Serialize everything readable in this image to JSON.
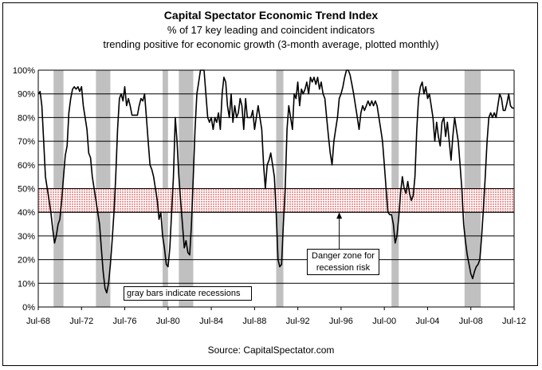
{
  "chart_data": {
    "type": "line",
    "title": "Capital Spectator Economic Trend Index",
    "subtitle_lines": [
      "% of 17 key leading and coincident indicators",
      "trending positive for economic growth (3-month average, plotted monthly)"
    ],
    "source": "Source: CapitalSpectator.com",
    "x_tick_labels": [
      "Jul-68",
      "Jul-72",
      "Jul-76",
      "Jul-80",
      "Jul-84",
      "Jul-88",
      "Jul-92",
      "Jul-96",
      "Jul-00",
      "Jul-04",
      "Jul-08",
      "Jul-12"
    ],
    "x_range": [
      "1968-07",
      "2012-07"
    ],
    "y_tick_labels": [
      "0%",
      "10%",
      "20%",
      "30%",
      "40%",
      "50%",
      "60%",
      "70%",
      "80%",
      "90%",
      "100%"
    ],
    "ylim": [
      0,
      100
    ],
    "grid": "horizontal",
    "danger_zone": {
      "low": 40,
      "high": 50
    },
    "recessions": [
      [
        "1969-12",
        "1970-11"
      ],
      [
        "1973-11",
        "1975-03"
      ],
      [
        "1980-01",
        "1980-07"
      ],
      [
        "1981-07",
        "1982-11"
      ],
      [
        "1990-07",
        "1991-03"
      ],
      [
        "2001-03",
        "2001-11"
      ],
      [
        "2007-12",
        "2009-06"
      ]
    ],
    "series": [
      {
        "points": [
          [
            "1968-07",
            90
          ],
          [
            "1968-09",
            91
          ],
          [
            "1968-11",
            85
          ],
          [
            "1969-01",
            70
          ],
          [
            "1969-03",
            55
          ],
          [
            "1969-05",
            50
          ],
          [
            "1969-07",
            45
          ],
          [
            "1969-09",
            40
          ],
          [
            "1969-11",
            33
          ],
          [
            "1970-01",
            27
          ],
          [
            "1970-03",
            30
          ],
          [
            "1970-05",
            35
          ],
          [
            "1970-07",
            37
          ],
          [
            "1970-09",
            45
          ],
          [
            "1970-11",
            55
          ],
          [
            "1971-01",
            64
          ],
          [
            "1971-03",
            68
          ],
          [
            "1971-05",
            82
          ],
          [
            "1971-07",
            88
          ],
          [
            "1971-09",
            92
          ],
          [
            "1971-11",
            93
          ],
          [
            "1972-01",
            92
          ],
          [
            "1972-03",
            93
          ],
          [
            "1972-05",
            91
          ],
          [
            "1972-07",
            93
          ],
          [
            "1972-09",
            85
          ],
          [
            "1972-11",
            80
          ],
          [
            "1973-01",
            75
          ],
          [
            "1973-03",
            65
          ],
          [
            "1973-05",
            63
          ],
          [
            "1973-07",
            55
          ],
          [
            "1973-09",
            50
          ],
          [
            "1973-11",
            45
          ],
          [
            "1974-01",
            40
          ],
          [
            "1974-03",
            35
          ],
          [
            "1974-05",
            25
          ],
          [
            "1974-07",
            15
          ],
          [
            "1974-09",
            8
          ],
          [
            "1974-11",
            6
          ],
          [
            "1975-01",
            10
          ],
          [
            "1975-03",
            18
          ],
          [
            "1975-05",
            28
          ],
          [
            "1975-07",
            40
          ],
          [
            "1975-09",
            55
          ],
          [
            "1975-11",
            75
          ],
          [
            "1976-01",
            88
          ],
          [
            "1976-03",
            90
          ],
          [
            "1976-05",
            87
          ],
          [
            "1976-07",
            93
          ],
          [
            "1976-09",
            85
          ],
          [
            "1976-11",
            88
          ],
          [
            "1977-01",
            85
          ],
          [
            "1977-03",
            81
          ],
          [
            "1977-05",
            81
          ],
          [
            "1977-07",
            81
          ],
          [
            "1977-09",
            81
          ],
          [
            "1977-11",
            85
          ],
          [
            "1978-01",
            88
          ],
          [
            "1978-03",
            87
          ],
          [
            "1978-05",
            90
          ],
          [
            "1978-07",
            80
          ],
          [
            "1978-09",
            70
          ],
          [
            "1978-11",
            60
          ],
          [
            "1979-01",
            58
          ],
          [
            "1979-03",
            55
          ],
          [
            "1979-05",
            50
          ],
          [
            "1979-07",
            45
          ],
          [
            "1979-09",
            37
          ],
          [
            "1979-11",
            40
          ],
          [
            "1980-01",
            30
          ],
          [
            "1980-03",
            25
          ],
          [
            "1980-05",
            18
          ],
          [
            "1980-07",
            17
          ],
          [
            "1980-09",
            25
          ],
          [
            "1980-11",
            40
          ],
          [
            "1981-01",
            55
          ],
          [
            "1981-03",
            80
          ],
          [
            "1981-05",
            70
          ],
          [
            "1981-07",
            55
          ],
          [
            "1981-09",
            45
          ],
          [
            "1981-11",
            35
          ],
          [
            "1982-01",
            25
          ],
          [
            "1982-03",
            28
          ],
          [
            "1982-05",
            23
          ],
          [
            "1982-07",
            22
          ],
          [
            "1982-09",
            35
          ],
          [
            "1982-11",
            55
          ],
          [
            "1983-01",
            75
          ],
          [
            "1983-03",
            90
          ],
          [
            "1983-05",
            95
          ],
          [
            "1983-07",
            100
          ],
          [
            "1983-09",
            100
          ],
          [
            "1983-11",
            100
          ],
          [
            "1984-01",
            90
          ],
          [
            "1984-03",
            80
          ],
          [
            "1984-05",
            78
          ],
          [
            "1984-07",
            80
          ],
          [
            "1984-09",
            75
          ],
          [
            "1984-11",
            80
          ],
          [
            "1985-01",
            78
          ],
          [
            "1985-03",
            82
          ],
          [
            "1985-05",
            75
          ],
          [
            "1985-07",
            90
          ],
          [
            "1985-09",
            97
          ],
          [
            "1985-11",
            95
          ],
          [
            "1986-01",
            85
          ],
          [
            "1986-03",
            80
          ],
          [
            "1986-05",
            90
          ],
          [
            "1986-07",
            78
          ],
          [
            "1986-09",
            85
          ],
          [
            "1986-11",
            80
          ],
          [
            "1987-01",
            82
          ],
          [
            "1987-03",
            88
          ],
          [
            "1987-05",
            85
          ],
          [
            "1987-07",
            75
          ],
          [
            "1987-09",
            88
          ],
          [
            "1987-11",
            80
          ],
          [
            "1988-01",
            80
          ],
          [
            "1988-03",
            80
          ],
          [
            "1988-05",
            83
          ],
          [
            "1988-07",
            75
          ],
          [
            "1988-09",
            80
          ],
          [
            "1988-11",
            85
          ],
          [
            "1989-01",
            80
          ],
          [
            "1989-03",
            75
          ],
          [
            "1989-05",
            60
          ],
          [
            "1989-07",
            50
          ],
          [
            "1989-09",
            60
          ],
          [
            "1989-11",
            62
          ],
          [
            "1990-01",
            65
          ],
          [
            "1990-03",
            60
          ],
          [
            "1990-05",
            55
          ],
          [
            "1990-07",
            40
          ],
          [
            "1990-09",
            20
          ],
          [
            "1990-11",
            17
          ],
          [
            "1991-01",
            18
          ],
          [
            "1991-03",
            35
          ],
          [
            "1991-05",
            50
          ],
          [
            "1991-07",
            75
          ],
          [
            "1991-09",
            85
          ],
          [
            "1991-11",
            80
          ],
          [
            "1992-01",
            75
          ],
          [
            "1992-03",
            90
          ],
          [
            "1992-05",
            88
          ],
          [
            "1992-07",
            95
          ],
          [
            "1992-09",
            85
          ],
          [
            "1992-11",
            92
          ],
          [
            "1993-01",
            90
          ],
          [
            "1993-03",
            92
          ],
          [
            "1993-05",
            95
          ],
          [
            "1993-07",
            90
          ],
          [
            "1993-09",
            97
          ],
          [
            "1993-11",
            95
          ],
          [
            "1994-01",
            97
          ],
          [
            "1994-03",
            94
          ],
          [
            "1994-05",
            97
          ],
          [
            "1994-07",
            92
          ],
          [
            "1994-09",
            95
          ],
          [
            "1994-11",
            90
          ],
          [
            "1995-01",
            88
          ],
          [
            "1995-03",
            80
          ],
          [
            "1995-05",
            72
          ],
          [
            "1995-07",
            65
          ],
          [
            "1995-09",
            60
          ],
          [
            "1995-11",
            70
          ],
          [
            "1996-01",
            75
          ],
          [
            "1996-03",
            80
          ],
          [
            "1996-05",
            88
          ],
          [
            "1996-07",
            90
          ],
          [
            "1996-09",
            93
          ],
          [
            "1996-11",
            97
          ],
          [
            "1997-01",
            100
          ],
          [
            "1997-03",
            100
          ],
          [
            "1997-05",
            98
          ],
          [
            "1997-07",
            94
          ],
          [
            "1997-09",
            90
          ],
          [
            "1997-11",
            85
          ],
          [
            "1998-01",
            80
          ],
          [
            "1998-03",
            75
          ],
          [
            "1998-05",
            82
          ],
          [
            "1998-07",
            85
          ],
          [
            "1998-09",
            83
          ],
          [
            "1998-11",
            85
          ],
          [
            "1999-01",
            87
          ],
          [
            "1999-03",
            85
          ],
          [
            "1999-05",
            87
          ],
          [
            "1999-07",
            85
          ],
          [
            "1999-09",
            87
          ],
          [
            "1999-11",
            85
          ],
          [
            "2000-01",
            80
          ],
          [
            "2000-03",
            75
          ],
          [
            "2000-05",
            70
          ],
          [
            "2000-07",
            60
          ],
          [
            "2000-09",
            50
          ],
          [
            "2000-11",
            40
          ],
          [
            "2001-01",
            39
          ],
          [
            "2001-03",
            39
          ],
          [
            "2001-05",
            35
          ],
          [
            "2001-07",
            27
          ],
          [
            "2001-09",
            30
          ],
          [
            "2001-11",
            38
          ],
          [
            "2002-01",
            48
          ],
          [
            "2002-03",
            55
          ],
          [
            "2002-05",
            50
          ],
          [
            "2002-07",
            48
          ],
          [
            "2002-09",
            53
          ],
          [
            "2002-11",
            48
          ],
          [
            "2003-01",
            45
          ],
          [
            "2003-03",
            47
          ],
          [
            "2003-05",
            55
          ],
          [
            "2003-07",
            75
          ],
          [
            "2003-09",
            88
          ],
          [
            "2003-11",
            93
          ],
          [
            "2004-01",
            95
          ],
          [
            "2004-03",
            90
          ],
          [
            "2004-05",
            93
          ],
          [
            "2004-07",
            88
          ],
          [
            "2004-09",
            90
          ],
          [
            "2004-11",
            85
          ],
          [
            "2005-01",
            80
          ],
          [
            "2005-03",
            70
          ],
          [
            "2005-05",
            78
          ],
          [
            "2005-07",
            72
          ],
          [
            "2005-09",
            68
          ],
          [
            "2005-11",
            78
          ],
          [
            "2006-01",
            80
          ],
          [
            "2006-03",
            72
          ],
          [
            "2006-05",
            78
          ],
          [
            "2006-07",
            70
          ],
          [
            "2006-09",
            62
          ],
          [
            "2006-11",
            72
          ],
          [
            "2007-01",
            80
          ],
          [
            "2007-03",
            75
          ],
          [
            "2007-05",
            70
          ],
          [
            "2007-07",
            60
          ],
          [
            "2007-09",
            50
          ],
          [
            "2007-11",
            35
          ],
          [
            "2008-01",
            28
          ],
          [
            "2008-03",
            22
          ],
          [
            "2008-05",
            18
          ],
          [
            "2008-07",
            14
          ],
          [
            "2008-09",
            12
          ],
          [
            "2008-11",
            15
          ],
          [
            "2009-01",
            17
          ],
          [
            "2009-03",
            18
          ],
          [
            "2009-05",
            20
          ],
          [
            "2009-07",
            30
          ],
          [
            "2009-09",
            42
          ],
          [
            "2009-11",
            55
          ],
          [
            "2010-01",
            70
          ],
          [
            "2010-03",
            80
          ],
          [
            "2010-05",
            82
          ],
          [
            "2010-07",
            80
          ],
          [
            "2010-09",
            82
          ],
          [
            "2010-11",
            80
          ],
          [
            "2011-01",
            85
          ],
          [
            "2011-03",
            90
          ],
          [
            "2011-05",
            88
          ],
          [
            "2011-07",
            83
          ],
          [
            "2011-09",
            83
          ],
          [
            "2011-11",
            86
          ],
          [
            "2012-01",
            90
          ],
          [
            "2012-03",
            85
          ],
          [
            "2012-05",
            84
          ],
          [
            "2012-07",
            84
          ]
        ]
      }
    ],
    "annotations": {
      "recession_note": "gray bars indicate recessions",
      "danger_note_line1": "Danger zone for",
      "danger_note_line2": "recession risk",
      "danger_arrow_target": [
        "1996-05",
        40
      ]
    },
    "colors": {
      "line": "#000000",
      "recession_fill": "#c0c0c0",
      "danger_fill": "#f2c6c6",
      "grid": "#000000"
    }
  }
}
